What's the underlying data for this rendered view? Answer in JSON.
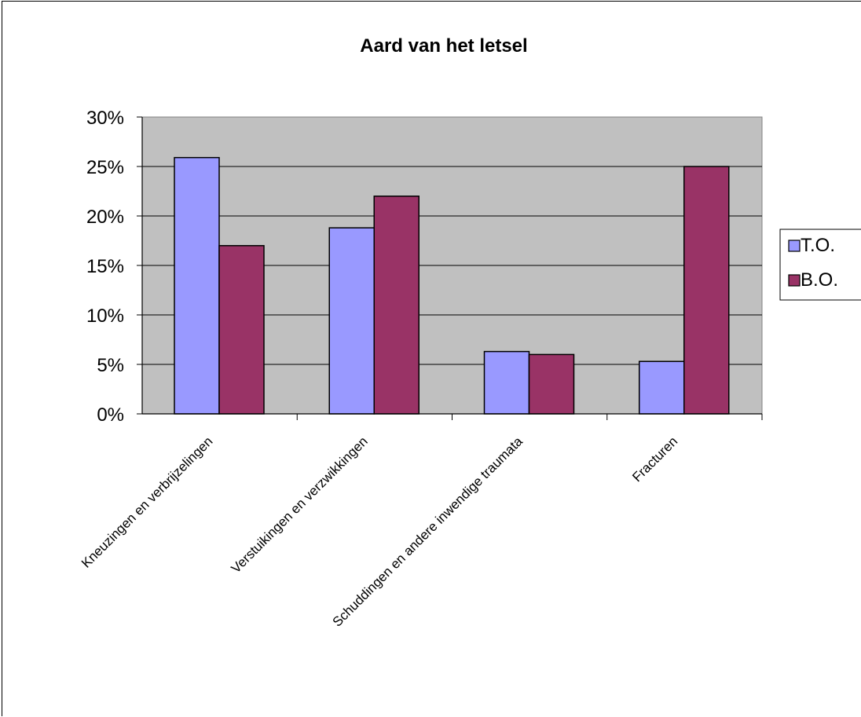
{
  "chart_data": {
    "type": "bar",
    "title": "Aard van het letsel",
    "xlabel": "",
    "ylabel": "",
    "categories": [
      "Kneuzingen en verbrijzelingen",
      "Verstuikingen en verzwikkingen",
      "Schuddingen en andere inwendige traumata",
      "Fracturen"
    ],
    "series": [
      {
        "name": "T.O.",
        "values": [
          0.259,
          0.188,
          0.063,
          0.053
        ],
        "color": "#9999ff"
      },
      {
        "name": "B.O.",
        "values": [
          0.17,
          0.22,
          0.06,
          0.25
        ],
        "color": "#993366"
      }
    ],
    "ylim": [
      0,
      0.3
    ],
    "yticks": [
      "0%",
      "5%",
      "10%",
      "15%",
      "20%",
      "25%",
      "30%"
    ],
    "grid": true,
    "plot_background": "#c0c0c0",
    "legend_position": "right"
  }
}
